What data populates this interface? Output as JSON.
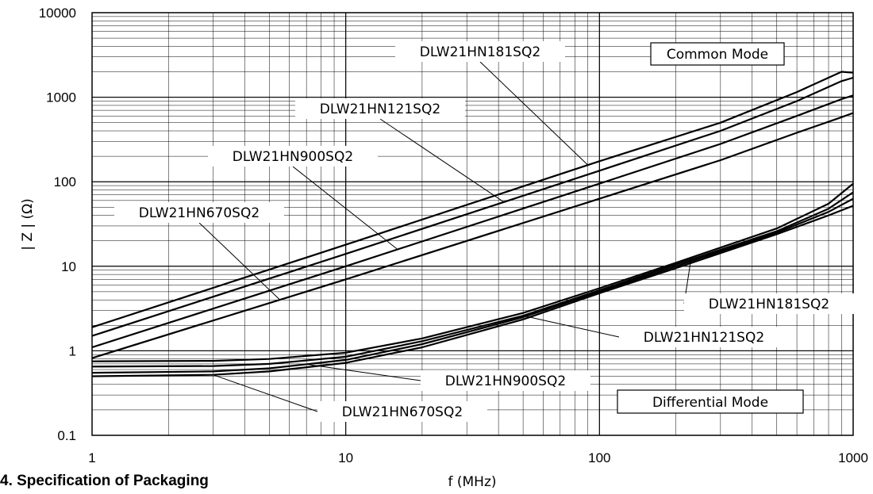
{
  "section_heading": "4. Specification of Packaging",
  "chart_data": {
    "type": "line",
    "title": "",
    "xlabel": "f (MHz)",
    "ylabel": "| Z | (Ω)",
    "xscale": "log",
    "yscale": "log",
    "xlim": [
      1,
      1000
    ],
    "ylim": [
      0.1,
      10000
    ],
    "x_ticks": [
      "1",
      "10",
      "100",
      "1000"
    ],
    "y_ticks": [
      "0.1",
      "1",
      "10",
      "100",
      "1000",
      "10000"
    ],
    "grid": true,
    "mode_labels": [
      "Common Mode",
      "Differential Mode"
    ],
    "series": [
      {
        "name": "DLW21HN181SQ2",
        "mode": "common",
        "x": [
          1,
          10,
          100,
          300,
          600,
          900,
          1000
        ],
        "y": [
          1.9,
          18,
          175,
          500,
          1150,
          2000,
          1950
        ]
      },
      {
        "name": "DLW21HN121SQ2",
        "mode": "common",
        "x": [
          1,
          10,
          100,
          300,
          600,
          900,
          1000
        ],
        "y": [
          1.5,
          14,
          135,
          400,
          900,
          1550,
          1700
        ]
      },
      {
        "name": "DLW21HN900SQ2",
        "mode": "common",
        "x": [
          1,
          10,
          100,
          300,
          600,
          900,
          1000
        ],
        "y": [
          1.1,
          10,
          95,
          280,
          600,
          950,
          1050
        ]
      },
      {
        "name": "DLW21HN670SQ2",
        "mode": "common",
        "x": [
          1,
          10,
          100,
          300,
          600,
          900,
          1000
        ],
        "y": [
          0.82,
          7,
          63,
          180,
          380,
          580,
          650
        ]
      },
      {
        "name": "DLW21HN181SQ2",
        "mode": "differential",
        "x": [
          1,
          3,
          5,
          10,
          20,
          50,
          100,
          200,
          500,
          800,
          1000
        ],
        "y": [
          0.75,
          0.76,
          0.8,
          0.95,
          1.4,
          2.8,
          5.5,
          11,
          28,
          55,
          95
        ]
      },
      {
        "name": "DLW21HN121SQ2",
        "mode": "differential",
        "x": [
          1,
          3,
          5,
          10,
          20,
          50,
          100,
          200,
          500,
          800,
          1000
        ],
        "y": [
          0.65,
          0.66,
          0.7,
          0.85,
          1.3,
          2.6,
          5.2,
          10.5,
          26,
          48,
          75
        ]
      },
      {
        "name": "DLW21HN900SQ2",
        "mode": "differential",
        "x": [
          1,
          3,
          5,
          10,
          20,
          50,
          100,
          200,
          500,
          800,
          1000
        ],
        "y": [
          0.55,
          0.57,
          0.62,
          0.78,
          1.2,
          2.5,
          5.0,
          10,
          25,
          44,
          63
        ]
      },
      {
        "name": "DLW21HN670SQ2",
        "mode": "differential",
        "x": [
          1,
          3,
          5,
          10,
          20,
          50,
          100,
          200,
          500,
          800,
          1000
        ],
        "y": [
          0.5,
          0.52,
          0.57,
          0.72,
          1.1,
          2.35,
          4.8,
          9.5,
          24,
          40,
          52
        ]
      }
    ],
    "annotations": [
      {
        "text": "DLW21HN181SQ2",
        "series": 0,
        "at_x": 90
      },
      {
        "text": "DLW21HN121SQ2",
        "series": 1,
        "at_x": 42
      },
      {
        "text": "DLW21HN900SQ2",
        "series": 2,
        "at_x": 16
      },
      {
        "text": "DLW21HN670SQ2",
        "series": 3,
        "at_x": 5.5
      },
      {
        "text": "DLW21HN181SQ2",
        "series": 4,
        "at_x": 230
      },
      {
        "text": "DLW21HN121SQ2",
        "series": 5,
        "at_x": 50
      },
      {
        "text": "DLW21HN900SQ2",
        "series": 6,
        "at_x": 7
      },
      {
        "text": "DLW21HN670SQ2",
        "series": 7,
        "at_x": 3
      }
    ]
  }
}
